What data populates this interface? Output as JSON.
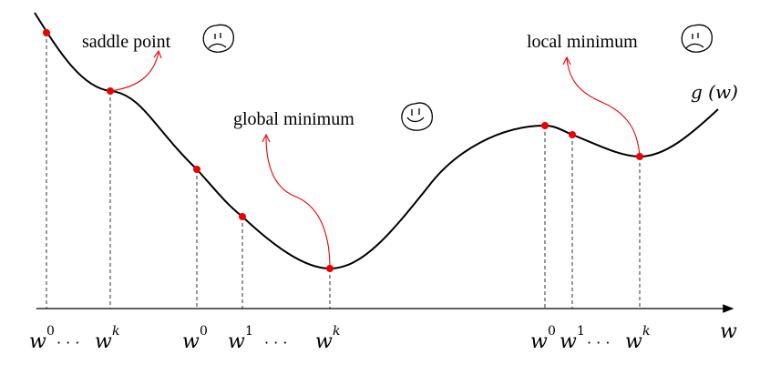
{
  "function_label": "g (w)",
  "axis_label": "w",
  "annotations": {
    "saddle": {
      "text": "saddle point",
      "face": "sad-face-icon"
    },
    "global": {
      "text": "global minimum",
      "face": "happy-face-icon"
    },
    "local": {
      "text": "local minimum",
      "face": "sad-face-icon"
    }
  },
  "tick_labels": {
    "t1_base": "w",
    "t1_sup": "0",
    "t1_dots": "· · ·",
    "t2_base": "w",
    "t2_sup": "k",
    "t3_base": "w",
    "t3_sup": "0",
    "t4_base": "w",
    "t4_sup": "1",
    "t4_dots": "· · ·",
    "t5_base": "w",
    "t5_sup": "k",
    "t6_base": "w",
    "t6_sup": "0",
    "t7_base": "w",
    "t7_sup": "1",
    "t7_dots": "· · ·",
    "t8_base": "w",
    "t8_sup": "k"
  },
  "colors": {
    "curve": "#000000",
    "points": "#ee0000",
    "arrows": "#ee0000"
  }
}
